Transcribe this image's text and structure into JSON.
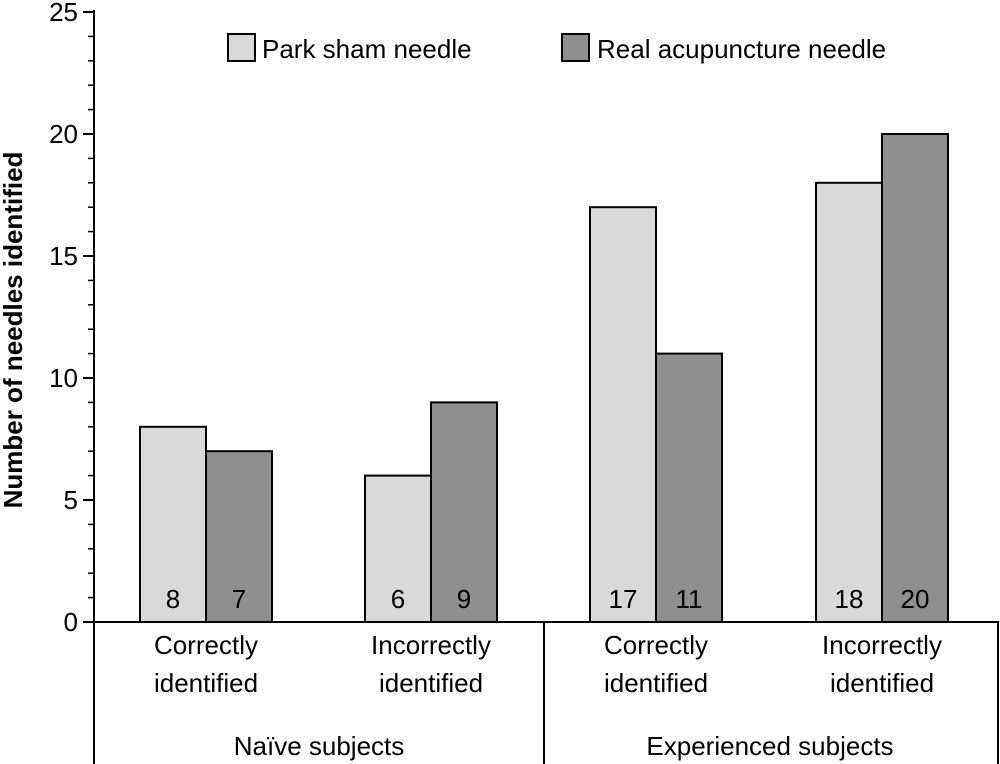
{
  "colors": {
    "park_sham": "#d9d9d9",
    "real_acupuncture": "#8f8f8f",
    "axis": "#000000"
  },
  "chart_data": {
    "type": "bar",
    "title": "",
    "ylabel": "Number of needles identified",
    "xlabel": "",
    "ylim": [
      0,
      25
    ],
    "yticks": [
      0,
      5,
      10,
      15,
      20,
      25
    ],
    "y_minor_step": 1,
    "grid": false,
    "legend_position": "top",
    "groups": [
      {
        "name": "Naïve subjects",
        "categories": [
          "Correctly identified",
          "Incorrectly identified"
        ]
      },
      {
        "name": "Experienced subjects",
        "categories": [
          "Correctly identified",
          "Incorrectly identified"
        ]
      }
    ],
    "categories": [
      [
        "Correctly",
        "identified"
      ],
      [
        "Incorrectly",
        "identified"
      ],
      [
        "Correctly",
        "identified"
      ],
      [
        "Incorrectly",
        "identified"
      ]
    ],
    "series": [
      {
        "name": "Park sham needle",
        "values": [
          8,
          6,
          17,
          18
        ],
        "color": "#d9d9d9"
      },
      {
        "name": "Real acupuncture needle",
        "values": [
          7,
          9,
          11,
          20
        ],
        "color": "#8f8f8f"
      }
    ]
  }
}
